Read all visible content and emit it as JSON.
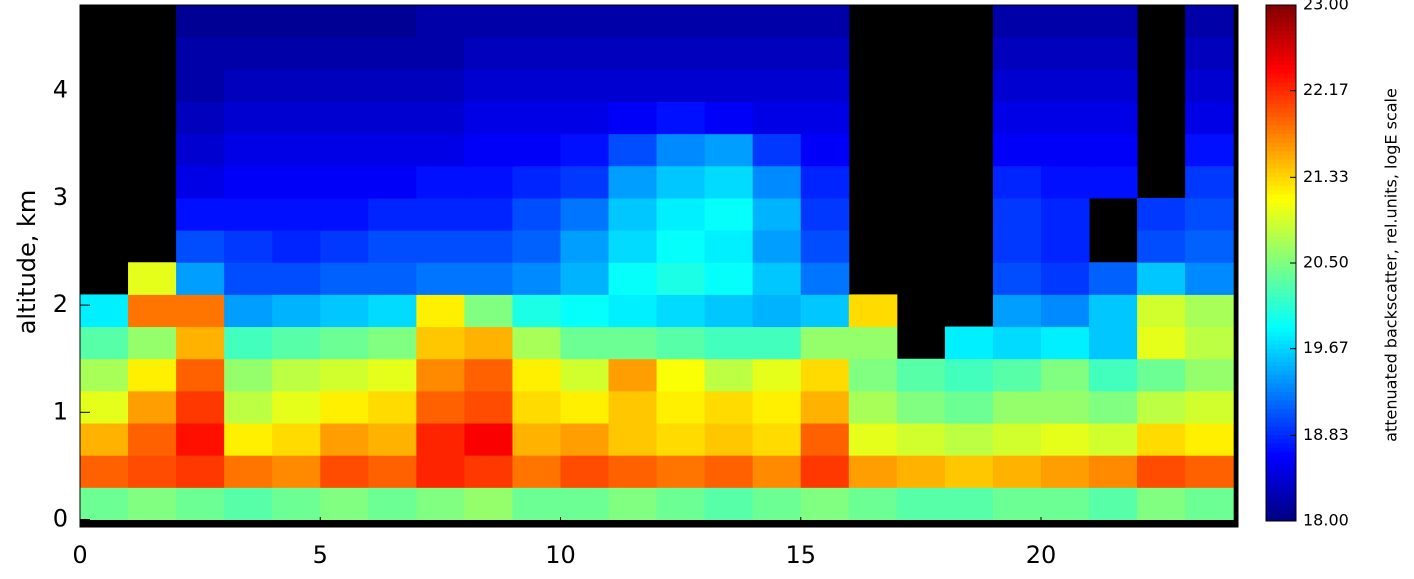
{
  "chart_data": {
    "type": "heatmap",
    "ylabel": "altitude, km",
    "colormap": "jet",
    "x_bins": [
      0,
      1,
      2,
      3,
      4,
      5,
      6,
      7,
      8,
      9,
      10,
      11,
      12,
      13,
      14,
      15,
      16,
      17,
      18,
      19,
      20,
      21,
      22,
      23,
      24
    ],
    "y_bins": [
      0,
      0.3,
      0.6,
      0.9,
      1.2,
      1.5,
      1.8,
      2.1,
      2.4,
      2.7,
      3.0,
      3.3,
      3.6,
      3.9,
      4.2,
      4.5,
      4.8
    ],
    "z": [
      [
        20.4,
        20.5,
        20.4,
        20.3,
        20.4,
        20.5,
        20.4,
        20.5,
        20.6,
        20.4,
        20.4,
        20.5,
        20.4,
        20.3,
        20.4,
        20.5,
        20.4,
        20.3,
        20.3,
        20.4,
        20.4,
        20.3,
        20.5,
        20.4
      ],
      [
        21.9,
        22.0,
        22.1,
        21.8,
        21.7,
        22.0,
        21.9,
        22.2,
        22.1,
        21.8,
        22.0,
        21.9,
        21.8,
        21.9,
        21.7,
        22.1,
        21.6,
        21.5,
        21.4,
        21.5,
        21.6,
        21.7,
        22.0,
        21.9
      ],
      [
        21.5,
        21.9,
        22.3,
        21.2,
        21.3,
        21.6,
        21.5,
        22.2,
        22.4,
        21.5,
        21.6,
        21.4,
        21.3,
        21.4,
        21.3,
        21.9,
        21.0,
        20.9,
        20.8,
        20.9,
        21.0,
        20.9,
        21.3,
        21.2
      ],
      [
        21.0,
        21.6,
        22.1,
        20.8,
        21.0,
        21.2,
        21.3,
        21.9,
        22.0,
        21.3,
        21.2,
        21.4,
        21.2,
        21.3,
        21.2,
        21.5,
        20.7,
        20.5,
        20.4,
        20.6,
        20.6,
        20.5,
        20.8,
        20.9
      ],
      [
        20.7,
        21.2,
        21.9,
        20.6,
        20.8,
        20.9,
        21.0,
        21.7,
        21.9,
        21.2,
        20.9,
        21.6,
        21.1,
        20.8,
        21.0,
        21.3,
        20.5,
        20.3,
        20.2,
        20.3,
        20.5,
        20.2,
        20.4,
        20.6
      ],
      [
        20.3,
        20.6,
        21.5,
        20.2,
        20.3,
        20.4,
        20.5,
        21.4,
        21.5,
        20.7,
        20.4,
        20.4,
        20.3,
        20.2,
        20.2,
        20.6,
        20.6,
        null,
        19.8,
        19.7,
        19.8,
        19.6,
        21.0,
        20.8
      ],
      [
        19.8,
        21.8,
        21.8,
        19.4,
        19.5,
        19.6,
        19.7,
        21.2,
        20.5,
        20.0,
        19.9,
        19.8,
        19.7,
        19.6,
        19.5,
        19.6,
        21.3,
        null,
        null,
        19.4,
        19.3,
        19.6,
        20.9,
        20.7
      ],
      [
        null,
        21.0,
        19.4,
        19.0,
        19.0,
        19.1,
        19.1,
        19.2,
        19.2,
        19.3,
        19.5,
        19.9,
        20.0,
        19.9,
        19.6,
        19.2,
        null,
        null,
        null,
        19.0,
        18.9,
        19.1,
        19.6,
        19.3
      ],
      [
        null,
        null,
        19.0,
        18.9,
        18.8,
        18.9,
        19.0,
        19.0,
        19.0,
        19.1,
        19.4,
        19.7,
        19.9,
        19.8,
        19.4,
        19.0,
        null,
        null,
        null,
        18.9,
        18.8,
        null,
        19.0,
        19.1
      ],
      [
        null,
        null,
        18.7,
        18.7,
        18.7,
        18.7,
        18.8,
        18.8,
        18.8,
        19.0,
        19.2,
        19.6,
        19.8,
        19.9,
        19.5,
        18.9,
        null,
        null,
        null,
        18.9,
        18.8,
        null,
        18.9,
        19.0
      ],
      [
        null,
        null,
        18.5,
        18.6,
        18.6,
        18.6,
        18.6,
        18.7,
        18.7,
        18.8,
        18.9,
        19.4,
        19.6,
        19.7,
        19.3,
        18.8,
        null,
        null,
        null,
        18.8,
        18.7,
        18.7,
        null,
        18.9
      ],
      [
        null,
        null,
        18.4,
        18.5,
        18.5,
        18.5,
        18.5,
        18.5,
        18.6,
        18.6,
        18.7,
        19.0,
        19.3,
        19.4,
        18.9,
        18.6,
        null,
        null,
        null,
        18.6,
        18.6,
        18.6,
        null,
        18.7
      ],
      [
        null,
        null,
        18.3,
        18.4,
        18.4,
        18.4,
        18.4,
        18.4,
        18.5,
        18.5,
        18.5,
        18.6,
        18.7,
        18.6,
        18.5,
        18.5,
        null,
        null,
        null,
        18.5,
        18.5,
        18.5,
        null,
        18.5
      ],
      [
        null,
        null,
        18.2,
        18.3,
        18.3,
        18.3,
        18.3,
        18.3,
        18.4,
        18.4,
        18.4,
        18.4,
        18.4,
        18.4,
        18.4,
        18.4,
        null,
        null,
        null,
        18.4,
        18.4,
        18.4,
        null,
        18.4
      ],
      [
        null,
        null,
        18.2,
        18.2,
        18.2,
        18.2,
        18.2,
        18.2,
        18.3,
        18.3,
        18.3,
        18.3,
        18.3,
        18.3,
        18.3,
        18.3,
        null,
        null,
        null,
        18.3,
        18.3,
        18.3,
        null,
        18.3
      ],
      [
        null,
        null,
        18.1,
        18.1,
        18.1,
        18.1,
        18.1,
        18.2,
        18.2,
        18.2,
        18.2,
        18.2,
        18.2,
        18.2,
        18.2,
        18.2,
        null,
        null,
        null,
        18.2,
        18.2,
        18.2,
        null,
        18.2
      ]
    ],
    "xlim": [
      0,
      24.1
    ],
    "xticks": [
      0,
      5,
      10,
      15,
      20
    ],
    "ylim": [
      -0.07,
      4.8
    ],
    "yticks": [
      0,
      1,
      2,
      3,
      4
    ],
    "colorbar": {
      "label": "attenuated backscatter, rel.units, logE scale",
      "lim": [
        18,
        23
      ],
      "ticks": [
        {
          "value": 18,
          "label": "18.00"
        },
        18.83,
        19.67,
        {
          "value": 20.5,
          "label": "20.50"
        },
        21.33,
        22.17,
        {
          "value": 23,
          "label": "23.00"
        }
      ]
    }
  }
}
